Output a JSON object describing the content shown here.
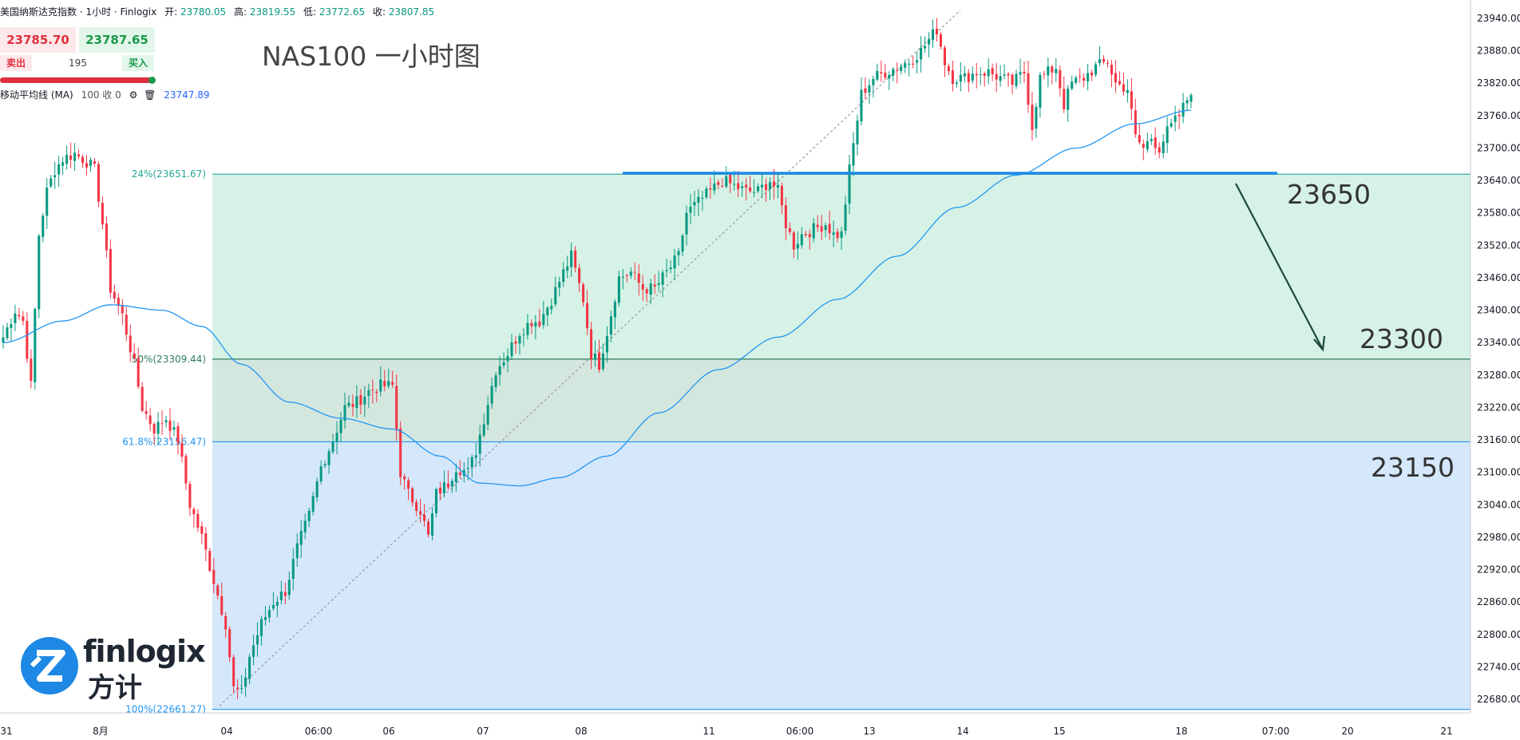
{
  "header": {
    "symbol": "美国纳斯达克指数 · 1小时 · Finlogix",
    "open_label": "开:",
    "open": "23780.05",
    "high_label": "高:",
    "high": "23819.55",
    "low_label": "低:",
    "low": "23772.65",
    "close_label": "收:",
    "close": "23807.85"
  },
  "quote": {
    "sell_price": "23785.70",
    "buy_price": "23787.65",
    "sell_label": "卖出",
    "buy_label": "买入",
    "spread": "195"
  },
  "indicator": {
    "label": "移动平均线 (MA)",
    "params": "100 收 0",
    "value": "23747.89"
  },
  "title": "NAS100 一小时图",
  "annotations": [
    "23650",
    "23300",
    "23150"
  ],
  "logo": {
    "brand": "finlogix",
    "brand_cn": "方计"
  },
  "colors": {
    "up": "#089981",
    "down": "#f23645",
    "ma": "#2196f3",
    "resistance": "#1e88e5",
    "fib_green": "#d6f2e6",
    "fib_blue": "#d5e7fb"
  },
  "chart_data": {
    "type": "candlestick",
    "timeframe": "1小时",
    "ylim": [
      22640,
      23970
    ],
    "y_ticks": [
      22680,
      22740,
      22800,
      22860,
      22920,
      22980,
      23040,
      23100,
      23160,
      23220,
      23280,
      23340,
      23400,
      23460,
      23520,
      23580,
      23640,
      23700,
      23760,
      23820,
      23880,
      23940
    ],
    "x_ticks": [
      "31",
      "8月",
      "04",
      "06:00",
      "06",
      "07",
      "08",
      "11",
      "06:00",
      "13",
      "14",
      "15",
      "18",
      "07:00",
      "20",
      "21"
    ],
    "fib_levels": [
      {
        "label": "24%(23651.67)",
        "value": 23651.67
      },
      {
        "label": "50%(23309.44)",
        "value": 23309.44
      },
      {
        "label": "61.8%(23156.47)",
        "value": 23156.47
      },
      {
        "label": "100%(22661.27)",
        "value": 22661.27
      }
    ],
    "resistance": 23652,
    "key_levels": [
      23650,
      23300,
      23150
    ],
    "ohlc_anchors": [
      [
        0,
        23350
      ],
      [
        3,
        23400
      ],
      [
        5,
        23380
      ],
      [
        7,
        23260
      ],
      [
        9,
        23540
      ],
      [
        11,
        23620
      ],
      [
        13,
        23660
      ],
      [
        15,
        23680
      ],
      [
        18,
        23690
      ],
      [
        21,
        23675
      ],
      [
        23,
        23660
      ],
      [
        25,
        23560
      ],
      [
        27,
        23440
      ],
      [
        30,
        23390
      ],
      [
        33,
        23300
      ],
      [
        35,
        23220
      ],
      [
        38,
        23180
      ],
      [
        41,
        23200
      ],
      [
        44,
        23160
      ],
      [
        47,
        23040
      ],
      [
        50,
        22980
      ],
      [
        53,
        22900
      ],
      [
        56,
        22820
      ],
      [
        58,
        22700
      ],
      [
        60,
        22690
      ],
      [
        62,
        22760
      ],
      [
        65,
        22820
      ],
      [
        68,
        22860
      ],
      [
        71,
        22880
      ],
      [
        74,
        22960
      ],
      [
        77,
        23020
      ],
      [
        80,
        23110
      ],
      [
        83,
        23160
      ],
      [
        86,
        23220
      ],
      [
        89,
        23230
      ],
      [
        92,
        23250
      ],
      [
        95,
        23260
      ],
      [
        98,
        23260
      ],
      [
        100,
        23100
      ],
      [
        102,
        23060
      ],
      [
        105,
        23030
      ],
      [
        107,
        22980
      ],
      [
        109,
        23060
      ],
      [
        112,
        23080
      ],
      [
        114,
        23110
      ],
      [
        117,
        23100
      ],
      [
        119,
        23140
      ],
      [
        121,
        23200
      ],
      [
        124,
        23290
      ],
      [
        127,
        23320
      ],
      [
        130,
        23360
      ],
      [
        133,
        23380
      ],
      [
        135,
        23380
      ],
      [
        138,
        23420
      ],
      [
        141,
        23470
      ],
      [
        143,
        23500
      ],
      [
        146,
        23420
      ],
      [
        148,
        23320
      ],
      [
        150,
        23300
      ],
      [
        152,
        23360
      ],
      [
        155,
        23460
      ],
      [
        158,
        23470
      ],
      [
        161,
        23440
      ],
      [
        164,
        23440
      ],
      [
        167,
        23470
      ],
      [
        170,
        23500
      ],
      [
        172,
        23580
      ],
      [
        175,
        23600
      ],
      [
        178,
        23620
      ],
      [
        181,
        23640
      ],
      [
        184,
        23630
      ],
      [
        187,
        23620
      ],
      [
        190,
        23620
      ],
      [
        193,
        23640
      ],
      [
        195,
        23620
      ],
      [
        197,
        23560
      ],
      [
        199,
        23520
      ],
      [
        201,
        23540
      ],
      [
        204,
        23550
      ],
      [
        207,
        23560
      ],
      [
        209,
        23540
      ],
      [
        211,
        23540
      ],
      [
        213,
        23660
      ],
      [
        216,
        23800
      ],
      [
        219,
        23830
      ],
      [
        222,
        23840
      ],
      [
        225,
        23850
      ],
      [
        228,
        23860
      ],
      [
        231,
        23880
      ],
      [
        233,
        23900
      ],
      [
        235,
        23920
      ],
      [
        237,
        23860
      ],
      [
        239,
        23830
      ],
      [
        242,
        23830
      ],
      [
        245,
        23840
      ],
      [
        248,
        23840
      ],
      [
        251,
        23830
      ],
      [
        254,
        23820
      ],
      [
        257,
        23840
      ],
      [
        259,
        23740
      ],
      [
        261,
        23830
      ],
      [
        263,
        23840
      ],
      [
        265,
        23850
      ],
      [
        267,
        23780
      ],
      [
        269,
        23820
      ],
      [
        272,
        23830
      ],
      [
        275,
        23850
      ],
      [
        278,
        23860
      ],
      [
        280,
        23820
      ],
      [
        283,
        23810
      ],
      [
        285,
        23720
      ],
      [
        287,
        23700
      ],
      [
        289,
        23720
      ],
      [
        291,
        23700
      ],
      [
        293,
        23730
      ],
      [
        296,
        23760
      ],
      [
        298,
        23790
      ],
      [
        299,
        23808
      ]
    ],
    "ma_period": 100,
    "ma_curve": [
      [
        0,
        23340
      ],
      [
        15,
        23380
      ],
      [
        27,
        23410
      ],
      [
        40,
        23400
      ],
      [
        50,
        23370
      ],
      [
        60,
        23300
      ],
      [
        72,
        23230
      ],
      [
        85,
        23200
      ],
      [
        98,
        23180
      ],
      [
        110,
        23130
      ],
      [
        120,
        23080
      ],
      [
        130,
        23075
      ],
      [
        140,
        23090
      ],
      [
        152,
        23130
      ],
      [
        165,
        23210
      ],
      [
        180,
        23290
      ],
      [
        195,
        23350
      ],
      [
        210,
        23420
      ],
      [
        225,
        23500
      ],
      [
        240,
        23590
      ],
      [
        255,
        23650
      ],
      [
        270,
        23700
      ],
      [
        285,
        23745
      ],
      [
        299,
        23770
      ]
    ]
  }
}
